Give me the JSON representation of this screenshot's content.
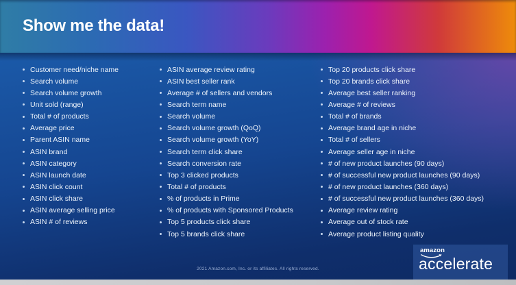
{
  "slide": {
    "title": "Show me the data!",
    "columns": [
      {
        "id": "column-1",
        "items": [
          "Customer need/niche name",
          "Search volume",
          "Search volume growth",
          "Unit sold (range)",
          "Total # of products",
          "Average price",
          "Parent ASIN name",
          "ASIN brand",
          "ASIN category",
          "ASIN launch date",
          "ASIN click count",
          "ASIN click share",
          "ASIN average selling price",
          "ASIN # of reviews"
        ]
      },
      {
        "id": "column-2",
        "items": [
          "ASIN average review rating",
          "ASIN best seller rank",
          "Average # of sellers and vendors",
          "Search term name",
          "Search volume",
          "Search volume growth (QoQ)",
          "Search volume growth (YoY)",
          "Search term click share",
          "Search conversion rate",
          "Top 3 clicked products",
          "Total # of products",
          "% of products in Prime",
          "% of products with Sponsored Products",
          "Top 5 products click share",
          "Top 5 brands click share"
        ]
      },
      {
        "id": "column-3",
        "items": [
          "Top 20 products click share",
          "Top 20 brands click share",
          "Average best seller ranking",
          "Average # of reviews",
          "Total # of brands",
          "Average brand age in niche",
          "Total # of sellers",
          "Average seller age in niche",
          "# of new product launches (90 days)",
          "# of successful new product launches (90 days)",
          "# of new product launches (360 days)",
          "# of successful new product launches (360 days)",
          "Average review rating",
          "Average out of stock rate",
          "Average product listing quality"
        ]
      }
    ],
    "footer": {
      "copyright": "2021 Amazon.com, Inc. or its affiliates. All rights reserved."
    },
    "logo": {
      "brand": "amazon",
      "product": "accelerate"
    },
    "colors": {
      "header_gradient": [
        "#2f7da6",
        "#2c6ab3",
        "#3a57c1",
        "#6b3bbd",
        "#9c21ae",
        "#c0188f",
        "#d03a3a",
        "#ee8c0a"
      ],
      "body_blue_top": "#1b5aa9",
      "body_navy_bottom": "#0e2a63",
      "body_purple_glow": "#6846a8",
      "list_text": "#eef4fb",
      "bullet": "#c9d9f0",
      "title_text": "#ffffff",
      "copyright_text": "#9cb0d4",
      "bottom_bar": "#c8c9cb"
    }
  }
}
